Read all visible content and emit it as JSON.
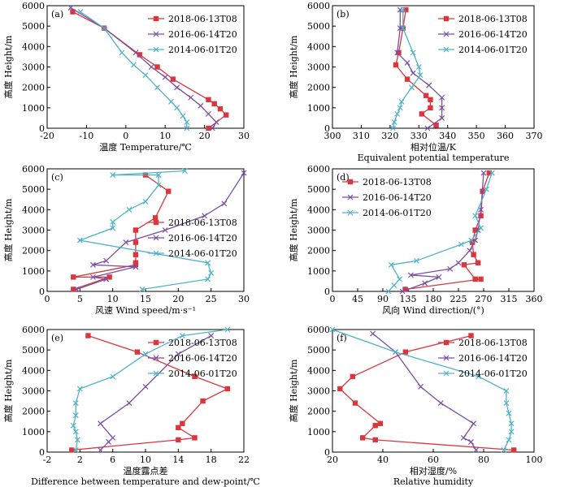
{
  "figure": {
    "colors": {
      "s1": "#d9363e",
      "s2": "#7a4ea6",
      "s3": "#4fb3c8",
      "axis": "#000000"
    },
    "marker_shapes": {
      "s1": "square",
      "s2": "x",
      "s3": "x"
    }
  },
  "chart_data": [
    {
      "panel_letter": "(a)",
      "type": "line",
      "xlabel": "温度 Temperature/℃",
      "ylabel": "高度 Height/m",
      "xlim": [
        -20,
        30
      ],
      "ylim": [
        0,
        6000
      ],
      "xticks": [
        "-20",
        "-10",
        "0",
        "10",
        "20",
        "30"
      ],
      "yticks": [
        "0",
        "1000",
        "2000",
        "3000",
        "4000",
        "5000",
        "6000"
      ],
      "grid": false,
      "legend_position": "top-right",
      "series": [
        {
          "name": "2018-06-13T08",
          "color": "#d9363e",
          "x": [
            21,
            25.5,
            24,
            22.5,
            21,
            12,
            8,
            3.5,
            -5.5,
            -13.5
          ],
          "y": [
            0,
            650,
            950,
            1200,
            1400,
            2400,
            3000,
            3600,
            4900,
            5700
          ]
        },
        {
          "name": "2016-06-14T20",
          "color": "#7a4ea6",
          "x": [
            22,
            23,
            21,
            19,
            16.5,
            13,
            10,
            6.5,
            2.5,
            -5.5,
            -14
          ],
          "y": [
            0,
            300,
            700,
            1100,
            1500,
            2000,
            2500,
            3000,
            3700,
            4900,
            5900
          ]
        },
        {
          "name": "2014-06-01T20",
          "color": "#4fb3c8",
          "x": [
            15.5,
            15.5,
            14.5,
            13,
            11.5,
            8,
            5,
            2,
            -1,
            -5.5,
            -11.5
          ],
          "y": [
            0,
            300,
            600,
            1000,
            1300,
            2000,
            2600,
            3100,
            3700,
            4900,
            5700
          ]
        }
      ]
    },
    {
      "panel_letter": "(b)",
      "type": "line",
      "xlabel": "相对位温/K",
      "xlabel2": "Equivalent potential temperature",
      "ylabel": "高度 Height/m",
      "xlim": [
        300,
        370
      ],
      "ylim": [
        0,
        6000
      ],
      "xticks": [
        "300",
        "310",
        "320",
        "330",
        "340",
        "350",
        "360",
        "370"
      ],
      "yticks": [
        "0",
        "1000",
        "2000",
        "3000",
        "4000",
        "5000",
        "6000"
      ],
      "grid": false,
      "legend_position": "top-right",
      "series": [
        {
          "name": "2018-06-13T08",
          "color": "#d9363e",
          "x": [
            336,
            331,
            334,
            334,
            332.5,
            326,
            322,
            323,
            324.5,
            325.5
          ],
          "y": [
            150,
            700,
            1000,
            1400,
            1600,
            2400,
            3100,
            3700,
            4900,
            5800
          ]
        },
        {
          "name": "2016-06-14T20",
          "color": "#7a4ea6",
          "x": [
            333,
            338,
            338,
            338,
            333.5,
            328,
            326,
            322.5,
            323.5,
            323.5
          ],
          "y": [
            0,
            500,
            1000,
            1500,
            2100,
            2700,
            3200,
            3700,
            4900,
            5800
          ]
        },
        {
          "name": "2014-06-01T20",
          "color": "#4fb3c8",
          "x": [
            321,
            321.5,
            322.5,
            323.5,
            324,
            327.5,
            330.5,
            330,
            328,
            324.5,
            324.5
          ],
          "y": [
            0,
            300,
            700,
            1000,
            1300,
            2000,
            2600,
            3000,
            3700,
            4900,
            5800
          ]
        }
      ]
    },
    {
      "panel_letter": "(c)",
      "type": "line",
      "xlabel": "风速 Wind speed/m·s⁻¹",
      "ylabel": "高度 Height/m",
      "xlim": [
        0,
        30
      ],
      "ylim": [
        0,
        6000
      ],
      "xticks": [
        "0",
        "5",
        "10",
        "15",
        "20",
        "25",
        "30"
      ],
      "yticks": [
        "0",
        "1000",
        "2000",
        "3000",
        "4000",
        "5000",
        "6000"
      ],
      "grid": false,
      "legend_position": "center-right",
      "series": [
        {
          "name": "2018-06-13T08",
          "color": "#d9363e",
          "x": [
            4,
            9.5,
            4,
            13.5,
            13.5,
            13.5,
            13.5,
            13.5,
            16.5,
            18.5,
            15
          ],
          "y": [
            100,
            700,
            700,
            1300,
            1400,
            1800,
            2400,
            3000,
            3600,
            4900,
            5700
          ]
        },
        {
          "name": "2016-06-14T20",
          "color": "#7a4ea6",
          "x": [
            4.5,
            9,
            7,
            13.5,
            7,
            9,
            12,
            18,
            24,
            27,
            30
          ],
          "y": [
            100,
            600,
            700,
            1200,
            1300,
            1500,
            2400,
            3000,
            3700,
            4300,
            5800
          ]
        },
        {
          "name": "2014-06-01T20",
          "color": "#4fb3c8",
          "x": [
            14.5,
            24.5,
            25,
            24.5,
            5,
            10,
            10,
            12.5,
            15,
            17,
            17,
            10,
            21
          ],
          "y": [
            100,
            600,
            900,
            1400,
            2500,
            3100,
            3400,
            4000,
            4400,
            5200,
            5700,
            5700,
            5900
          ]
        }
      ]
    },
    {
      "panel_letter": "(d)",
      "type": "line",
      "xlabel": "风向 Wind direction/(°)",
      "ylabel": "高度 Height/m",
      "xlim": [
        0,
        360
      ],
      "ylim": [
        0,
        6000
      ],
      "xticks": [
        "0",
        "45",
        "90",
        "135",
        "180",
        "225",
        "270",
        "315",
        "360"
      ],
      "yticks": [
        "0",
        "1000",
        "2000",
        "3000",
        "4000",
        "5000",
        "6000"
      ],
      "grid": false,
      "legend_position": "top-left",
      "series": [
        {
          "name": "2018-06-13T08",
          "color": "#d9363e",
          "x": [
            130,
            265,
            255,
            235,
            260,
            252,
            250,
            255,
            265,
            268,
            280
          ],
          "y": [
            100,
            600,
            600,
            1300,
            1400,
            1800,
            2400,
            3000,
            3700,
            4900,
            5800
          ]
        },
        {
          "name": "2016-06-14T20",
          "color": "#7a4ea6",
          "x": [
            125,
            165,
            190,
            140,
            210,
            225,
            245,
            255,
            260,
            265,
            270
          ],
          "y": [
            0,
            400,
            700,
            800,
            1100,
            1400,
            2000,
            2500,
            3000,
            4000,
            5800
          ]
        },
        {
          "name": "2014-06-01T20",
          "color": "#4fb3c8",
          "x": [
            100,
            110,
            120,
            105,
            150,
            230,
            248,
            265,
            255,
            275,
            285
          ],
          "y": [
            0,
            300,
            600,
            1300,
            1500,
            2300,
            2500,
            3100,
            3700,
            5000,
            5800
          ]
        }
      ]
    },
    {
      "panel_letter": "(e)",
      "type": "line",
      "xlabel": "温度露点差",
      "xlabel2": "Difference between temperature and dew-point/℃",
      "ylabel": "高度 Height/m",
      "xlim": [
        -2,
        22
      ],
      "ylim": [
        0,
        6000
      ],
      "xticks": [
        "-2",
        "2",
        "6",
        "10",
        "14",
        "18",
        "22"
      ],
      "yticks": [
        "0",
        "1000",
        "2000",
        "3000",
        "4000",
        "5000",
        "6000"
      ],
      "grid": false,
      "legend_position": "top-right",
      "series": [
        {
          "name": "2018-06-13T08",
          "color": "#d9363e",
          "x": [
            1,
            14,
            16,
            14,
            14.5,
            17,
            20,
            16,
            9,
            3
          ],
          "y": [
            100,
            600,
            700,
            1200,
            1400,
            2500,
            3100,
            3700,
            4900,
            5700
          ]
        },
        {
          "name": "2016-06-14T20",
          "color": "#7a4ea6",
          "x": [
            4.5,
            5.5,
            6,
            4.5,
            8,
            10,
            14,
            18
          ],
          "y": [
            100,
            500,
            700,
            1400,
            2400,
            3200,
            4800,
            5700
          ]
        },
        {
          "name": "2014-06-01T20",
          "color": "#4fb3c8",
          "x": [
            1.5,
            1.7,
            1.5,
            1.2,
            1.5,
            1.5,
            2,
            6,
            10,
            14.5,
            20
          ],
          "y": [
            100,
            600,
            1000,
            1300,
            1800,
            2400,
            3100,
            3700,
            4800,
            5700,
            6000
          ]
        }
      ]
    },
    {
      "panel_letter": "(f)",
      "type": "line",
      "xlabel": "相对湿度/%",
      "xlabel2": "Relative humidity",
      "ylabel": "高度 Height/m",
      "xlim": [
        20,
        100
      ],
      "ylim": [
        0,
        6000
      ],
      "xticks": [
        "20",
        "40",
        "60",
        "80",
        "100"
      ],
      "yticks": [
        "0",
        "1000",
        "2000",
        "3000",
        "4000",
        "5000",
        "6000"
      ],
      "grid": false,
      "legend_position": "top-right",
      "series": [
        {
          "name": "2018-06-13T08",
          "color": "#d9363e",
          "x": [
            92,
            37,
            32,
            37,
            39,
            29,
            23,
            28,
            49,
            75
          ],
          "y": [
            100,
            600,
            700,
            1300,
            1400,
            2400,
            3100,
            3700,
            4900,
            5700
          ]
        },
        {
          "name": "2016-06-14T20",
          "color": "#7a4ea6",
          "x": [
            77,
            75,
            72,
            76,
            63,
            55,
            45,
            36
          ],
          "y": [
            100,
            500,
            700,
            1400,
            2400,
            3200,
            4900,
            5800
          ]
        },
        {
          "name": "2014-06-01T20",
          "color": "#4fb3c8",
          "x": [
            88,
            90,
            91,
            91,
            90,
            89,
            89,
            78,
            45,
            20
          ],
          "y": [
            100,
            600,
            1000,
            1400,
            1900,
            2400,
            3000,
            3700,
            4900,
            6000
          ]
        }
      ]
    }
  ]
}
